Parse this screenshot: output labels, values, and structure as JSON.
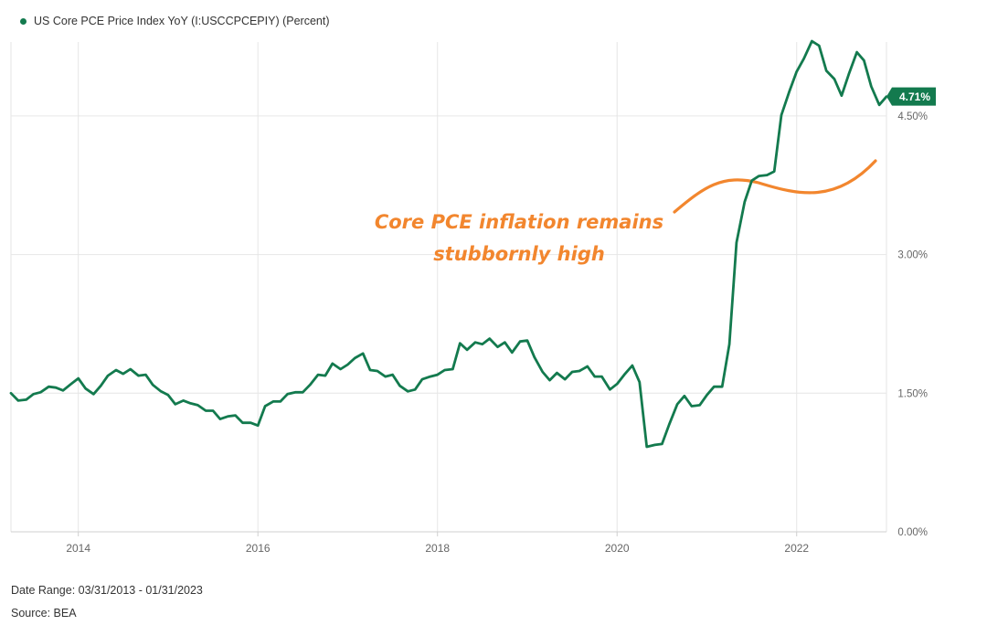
{
  "legend": {
    "series_label": "US Core PCE Price Index YoY (I:USCCPCEPIY) (Percent)"
  },
  "footer": {
    "date_range": "Date Range: 03/31/2013 - 01/31/2023",
    "source": "Source: BEA"
  },
  "annotation": {
    "line1": "Core PCE inflation remains",
    "line2": "stubbornly high",
    "color": "#f2862e"
  },
  "colors": {
    "series": "#137a4e",
    "grid": "#e6e6e6",
    "annotation": "#f2862e"
  },
  "chart_data": {
    "type": "line",
    "title": "",
    "xlabel": "",
    "ylabel": "",
    "ylim": [
      0,
      5.3
    ],
    "xlim": [
      2013.25,
      2023.0
    ],
    "grid": true,
    "y_ticks": [
      {
        "value": 0,
        "label": "0.00%"
      },
      {
        "value": 1.5,
        "label": "1.50%"
      },
      {
        "value": 3.0,
        "label": "3.00%"
      },
      {
        "value": 4.5,
        "label": "4.50%"
      }
    ],
    "x_ticks": [
      {
        "value": 2014,
        "label": "2014"
      },
      {
        "value": 2016,
        "label": "2016"
      },
      {
        "value": 2018,
        "label": "2018"
      },
      {
        "value": 2020,
        "label": "2020"
      },
      {
        "value": 2022,
        "label": "2022"
      }
    ],
    "last_value_label": "4.71%",
    "series": [
      {
        "name": "US Core PCE Price Index YoY (I:USCCPCEPIY)",
        "x": [
          2013.25,
          2013.33,
          2013.42,
          2013.5,
          2013.58,
          2013.67,
          2013.75,
          2013.83,
          2013.92,
          2014.0,
          2014.08,
          2014.17,
          2014.25,
          2014.33,
          2014.42,
          2014.5,
          2014.58,
          2014.67,
          2014.75,
          2014.83,
          2014.92,
          2015.0,
          2015.08,
          2015.17,
          2015.25,
          2015.33,
          2015.42,
          2015.5,
          2015.58,
          2015.67,
          2015.75,
          2015.83,
          2015.92,
          2016.0,
          2016.08,
          2016.17,
          2016.25,
          2016.33,
          2016.42,
          2016.5,
          2016.58,
          2016.67,
          2016.75,
          2016.83,
          2016.92,
          2017.0,
          2017.08,
          2017.17,
          2017.25,
          2017.33,
          2017.42,
          2017.5,
          2017.58,
          2017.67,
          2017.75,
          2017.83,
          2017.92,
          2018.0,
          2018.08,
          2018.17,
          2018.25,
          2018.33,
          2018.42,
          2018.5,
          2018.58,
          2018.67,
          2018.75,
          2018.83,
          2018.92,
          2019.0,
          2019.08,
          2019.17,
          2019.25,
          2019.33,
          2019.42,
          2019.5,
          2019.58,
          2019.67,
          2019.75,
          2019.83,
          2019.92,
          2020.0,
          2020.08,
          2020.17,
          2020.25,
          2020.33,
          2020.42,
          2020.5,
          2020.58,
          2020.67,
          2020.75,
          2020.83,
          2020.92,
          2021.0,
          2021.08,
          2021.17,
          2021.25,
          2021.33,
          2021.42,
          2021.5,
          2021.58,
          2021.67,
          2021.75,
          2021.83,
          2021.92,
          2022.0,
          2022.08,
          2022.17,
          2022.25,
          2022.33,
          2022.42,
          2022.5,
          2022.58,
          2022.67,
          2022.75,
          2022.83,
          2022.92,
          2023.0
        ],
        "values": [
          1.5,
          1.42,
          1.43,
          1.49,
          1.51,
          1.57,
          1.56,
          1.53,
          1.6,
          1.66,
          1.55,
          1.49,
          1.58,
          1.69,
          1.75,
          1.71,
          1.76,
          1.69,
          1.7,
          1.59,
          1.52,
          1.48,
          1.38,
          1.42,
          1.39,
          1.37,
          1.31,
          1.31,
          1.22,
          1.25,
          1.26,
          1.18,
          1.18,
          1.15,
          1.36,
          1.41,
          1.41,
          1.49,
          1.51,
          1.51,
          1.59,
          1.7,
          1.69,
          1.82,
          1.76,
          1.81,
          1.88,
          1.93,
          1.75,
          1.74,
          1.68,
          1.7,
          1.58,
          1.52,
          1.54,
          1.65,
          1.68,
          1.7,
          1.75,
          1.76,
          2.04,
          1.97,
          2.05,
          2.03,
          2.09,
          2.0,
          2.05,
          1.94,
          2.06,
          2.07,
          1.89,
          1.73,
          1.64,
          1.72,
          1.65,
          1.73,
          1.74,
          1.79,
          1.68,
          1.68,
          1.54,
          1.6,
          1.7,
          1.8,
          1.62,
          0.92,
          0.94,
          0.95,
          1.16,
          1.38,
          1.47,
          1.36,
          1.37,
          1.48,
          1.57,
          1.57,
          2.03,
          3.13,
          3.57,
          3.8,
          3.85,
          3.86,
          3.9,
          4.51,
          4.77,
          4.98,
          5.12,
          5.31,
          5.26,
          4.99,
          4.9,
          4.72,
          4.95,
          5.19,
          5.1,
          4.82,
          4.62,
          4.71
        ]
      }
    ]
  }
}
